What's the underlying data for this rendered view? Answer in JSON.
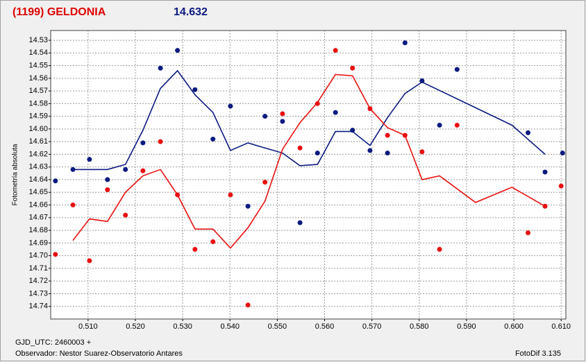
{
  "header": {
    "title": "(1199) GELDONIA",
    "magnitude": "14.632"
  },
  "chart_data": {
    "type": "line",
    "ylabel": "Fotometría absoluta",
    "xlim": [
      0.5021,
      0.611
    ],
    "ylim": [
      14.75,
      14.5223
    ],
    "grid": true,
    "xticks": [
      {
        "value": 0.51,
        "label": "0.510"
      },
      {
        "value": 0.52,
        "label": "0.520"
      },
      {
        "value": 0.53,
        "label": "0.530"
      },
      {
        "value": 0.54,
        "label": "0.540"
      },
      {
        "value": 0.55,
        "label": "0.550"
      },
      {
        "value": 0.56,
        "label": "0.560"
      },
      {
        "value": 0.57,
        "label": "0.570"
      },
      {
        "value": 0.58,
        "label": "0.580"
      },
      {
        "value": 0.59,
        "label": "0.590"
      },
      {
        "value": 0.6,
        "label": "0.600"
      },
      {
        "value": 0.61,
        "label": "0.610"
      }
    ],
    "yticks": [
      14.53,
      14.54,
      14.55,
      14.56,
      14.57,
      14.58,
      14.59,
      {
        "value": 14.6,
        "label": "14.60"
      },
      14.61,
      14.62,
      14.63,
      14.64,
      14.65,
      14.66,
      14.67,
      14.68,
      14.69,
      {
        "value": 14.7,
        "label": "14.70"
      },
      14.71,
      14.72,
      14.73,
      14.74
    ],
    "series": [
      {
        "mode": "markers",
        "color": "#0a1a80",
        "x": [
          0.5031,
          0.5068,
          0.5103,
          0.5141,
          0.5179,
          0.5216,
          0.5253,
          0.5289,
          0.5326,
          0.5364,
          0.5401,
          0.5438,
          0.5474,
          0.5511,
          0.5548,
          0.5585,
          0.5623,
          0.5659,
          0.5696,
          0.5733,
          0.577,
          0.5806,
          0.5843,
          0.588,
          0.603,
          0.6066,
          0.6103
        ],
        "values": [
          14.641,
          14.632,
          14.624,
          14.64,
          14.632,
          14.611,
          14.552,
          14.538,
          14.569,
          14.608,
          14.582,
          14.661,
          14.59,
          14.594,
          14.674,
          14.619,
          14.587,
          14.601,
          14.617,
          14.619,
          14.532,
          14.562,
          14.597,
          14.553,
          14.603,
          14.634,
          14.619
        ]
      },
      {
        "mode": "markers",
        "color": "#e81010",
        "x": [
          0.5031,
          0.5068,
          0.5103,
          0.5141,
          0.5179,
          0.5216,
          0.5253,
          0.5289,
          0.5326,
          0.5364,
          0.5401,
          0.5438,
          0.5474,
          0.5511,
          0.5548,
          0.5585,
          0.5623,
          0.5659,
          0.5696,
          0.5733,
          0.577,
          0.5806,
          0.5843,
          0.588,
          0.603,
          0.6066,
          0.61
        ],
        "values": [
          14.699,
          14.66,
          14.704,
          14.648,
          14.668,
          14.633,
          14.61,
          14.652,
          14.695,
          14.689,
          14.652,
          14.739,
          14.642,
          14.588,
          14.615,
          14.58,
          14.538,
          14.552,
          14.584,
          14.605,
          14.605,
          14.618,
          14.695,
          14.597,
          14.682,
          14.661,
          14.645
        ]
      },
      {
        "mode": "line",
        "color": "#0a1a80",
        "x": [
          0.5068,
          0.5103,
          0.5141,
          0.5179,
          0.5216,
          0.5253,
          0.5289,
          0.5326,
          0.5364,
          0.5401,
          0.5438,
          0.5474,
          0.5511,
          0.5548,
          0.5585,
          0.5623,
          0.5659,
          0.5696,
          0.5733,
          0.577,
          0.5806,
          0.5996,
          0.6066
        ],
        "values": [
          14.632,
          14.632,
          14.632,
          14.628,
          14.601,
          14.568,
          14.554,
          14.573,
          14.587,
          14.617,
          14.611,
          14.615,
          14.619,
          14.629,
          14.628,
          14.602,
          14.602,
          14.613,
          14.591,
          14.572,
          14.563,
          14.597,
          14.62
        ]
      },
      {
        "mode": "line",
        "color": "#e81010",
        "x": [
          0.5068,
          0.5103,
          0.5141,
          0.5179,
          0.5216,
          0.5253,
          0.5289,
          0.5326,
          0.5364,
          0.5401,
          0.5438,
          0.5474,
          0.5511,
          0.5548,
          0.5585,
          0.5623,
          0.5659,
          0.5696,
          0.5733,
          0.577,
          0.5806,
          0.5843,
          0.5919,
          0.5996,
          0.6066
        ],
        "values": [
          14.688,
          14.671,
          14.673,
          14.65,
          14.637,
          14.632,
          14.652,
          14.679,
          14.679,
          14.694,
          14.678,
          14.657,
          14.616,
          14.595,
          14.579,
          14.557,
          14.558,
          14.584,
          14.599,
          14.605,
          14.64,
          14.637,
          14.658,
          14.646,
          14.661
        ]
      }
    ]
  },
  "footer": {
    "jd": "GJD_UTC: 2460003 +",
    "observer": "Observador: Nestor Suarez-Observatorio Antares",
    "software": "FotoDif 3.135"
  }
}
